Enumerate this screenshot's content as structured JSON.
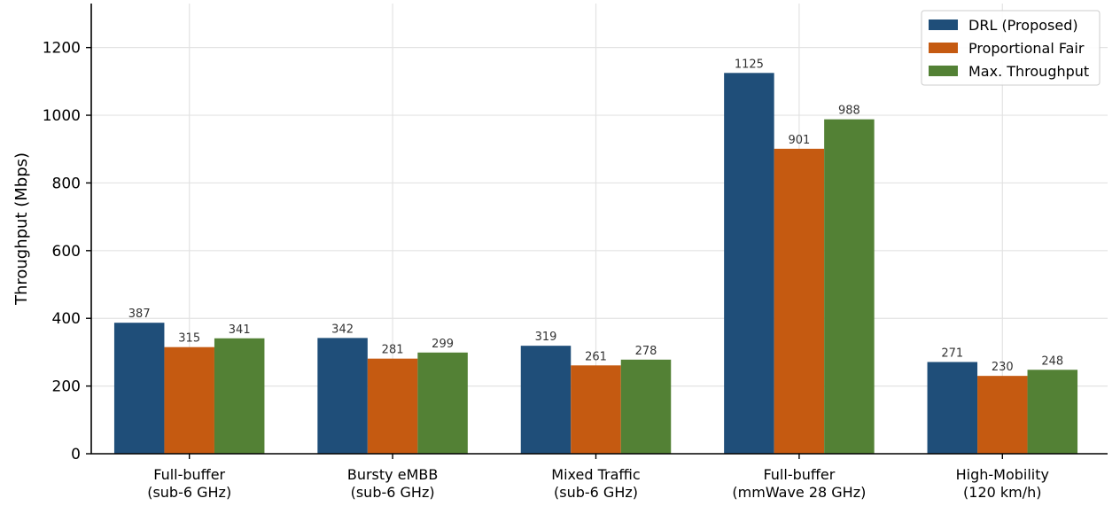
{
  "chart_data": {
    "type": "bar",
    "title": "",
    "xlabel": "",
    "ylabel": "Throughput (Mbps)",
    "ylim": [
      0,
      1330
    ],
    "yticks": [
      0,
      200,
      400,
      600,
      800,
      1000,
      1200
    ],
    "grid": true,
    "legend_position": "top-right",
    "categories": [
      [
        "Full-buffer",
        "(sub-6 GHz)"
      ],
      [
        "Bursty eMBB",
        "(sub-6 GHz)"
      ],
      [
        "Mixed Traffic",
        "(sub-6 GHz)"
      ],
      [
        "Full-buffer",
        "(mmWave 28 GHz)"
      ],
      [
        "High-Mobility",
        "(120 km/h)"
      ]
    ],
    "series": [
      {
        "name": "DRL (Proposed)",
        "color": "#1f4e79",
        "values": [
          387,
          342,
          319,
          1125,
          271
        ]
      },
      {
        "name": "Proportional Fair",
        "color": "#c55a11",
        "values": [
          315,
          281,
          261,
          901,
          230
        ]
      },
      {
        "name": "Max. Throughput",
        "color": "#538135",
        "values": [
          341,
          299,
          278,
          988,
          248
        ]
      }
    ]
  }
}
